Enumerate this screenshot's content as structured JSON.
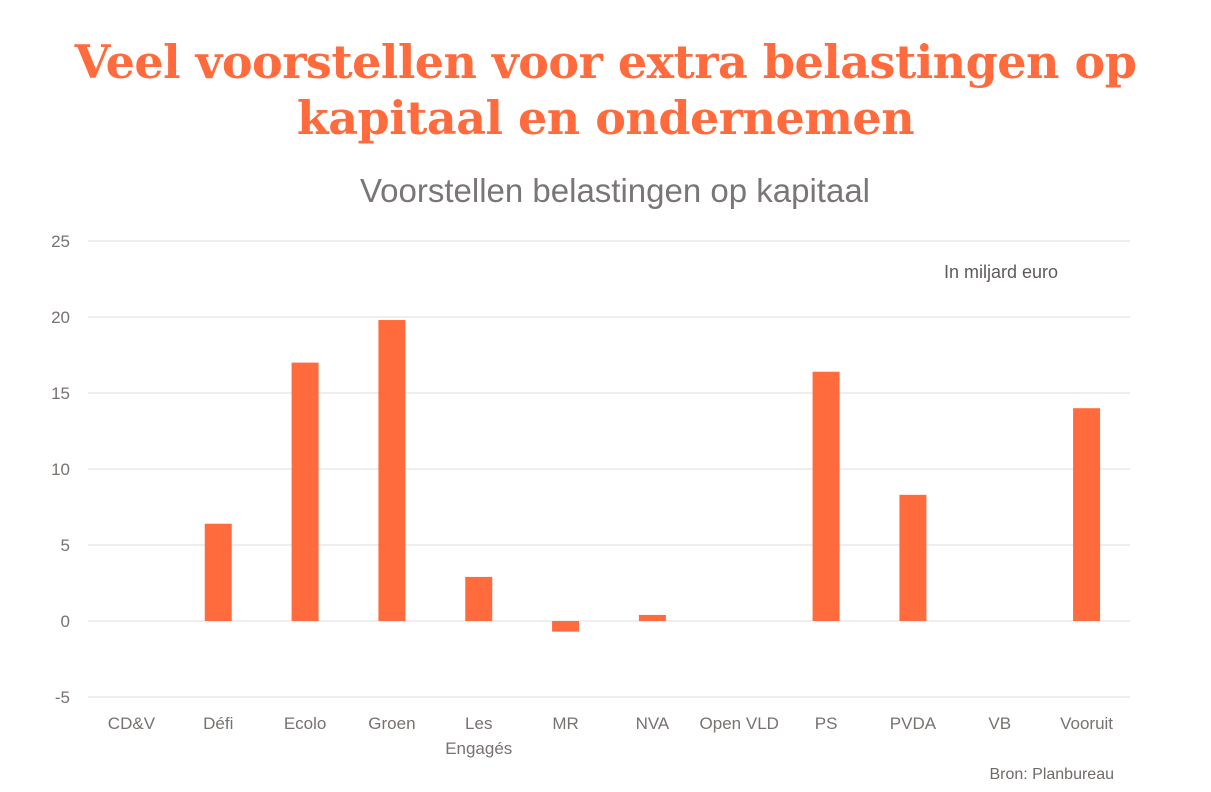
{
  "header": {
    "title": "Veel voorstellen voor extra belastingen op kapitaal en ondernemen"
  },
  "chart_data": {
    "type": "bar",
    "title": "Voorstellen belastingen op kapitaal",
    "unit_note": "In miljard euro",
    "source": "Bron: Planbureau",
    "categories": [
      "CD&V",
      "Défi",
      "Ecolo",
      "Groen",
      "Les Engagés",
      "MR",
      "NVA",
      "Open VLD",
      "PS",
      "PVDA",
      "VB",
      "Vooruit"
    ],
    "values": [
      0,
      6.4,
      17.0,
      19.8,
      2.9,
      -0.7,
      0.4,
      0,
      16.4,
      8.3,
      0,
      14.0
    ],
    "ylim": [
      -5,
      25
    ],
    "yticks": [
      25,
      20,
      15,
      10,
      5,
      0,
      -5
    ],
    "grid": true,
    "legend": "none",
    "bar_color": "#ff6b3d",
    "title_color": "#ff6b3d"
  }
}
